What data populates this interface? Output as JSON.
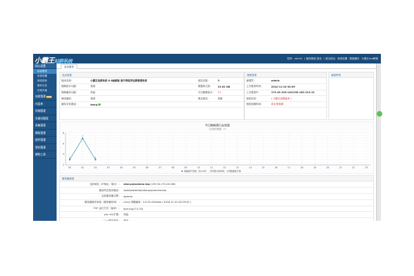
{
  "header": {
    "logo_main": "小霸王",
    "logo_sub": "站群系统",
    "links": [
      "您好：admin",
      "| 使用授权 退出",
      "| 前往前台",
      "系统设置",
      "更新缓存",
      "小霸王seo教程"
    ]
  },
  "sidebar": {
    "section": "核心设置",
    "sub_items": [
      "后台首页",
      "系统设置",
      "修改密码",
      "操作日志",
      "在线升级"
    ],
    "groups": [
      {
        "label": "站群管理",
        "badge": "NEW"
      },
      {
        "label": "内容库"
      },
      {
        "label": "伴随管理"
      },
      {
        "label": "关键词管理"
      },
      {
        "label": "采集管理"
      },
      {
        "label": "模板管理"
      },
      {
        "label": "插件管理"
      },
      {
        "label": "我的管理"
      },
      {
        "label": "辅助工具"
      }
    ]
  },
  "tab": "后台首页",
  "site_info": {
    "title": "站点信息",
    "rows": [
      [
        "程序名称：",
        "小霸王站群系统 6.8破解版 基于原程序站群管理系统",
        "域名总数：",
        "3"
      ],
      [
        "蜘蛛统计功能：",
        "关闭",
        "数据库占用：",
        "19.62 GB"
      ],
      [
        "蜘蛛缓存功能：",
        "开启",
        "今日蜘蛛统计：",
        "13"
      ],
      [
        "静态缓存：",
        "关闭",
        "是否调试：",
        "关闭"
      ],
      [
        "缓存文件路径：",
        "temp",
        "",
        ""
      ]
    ]
  },
  "auth_info": {
    "title": "授权信息",
    "rows": [
      [
        "管理员：",
        "admin"
      ],
      [
        "上次登录时间：",
        "2014-11-20 02:09"
      ],
      [
        "上次登录IP：",
        "172.49.109.149/100.162.213.12"
      ],
      [
        "授权状态：",
        "[ 小霸王站群版本 ]"
      ],
      [
        "授权到期时间：",
        "永久有效期"
      ]
    ]
  },
  "copyright": {
    "title": "版权所有"
  },
  "chart_data": {
    "type": "line",
    "title": "今日蜘蛛爬行走势图",
    "subtitle": "今日爬行数量：13",
    "categories": [
      "00",
      "01",
      "02",
      "03",
      "04",
      "05",
      "06",
      "07",
      "08",
      "09",
      "10",
      "11",
      "12",
      "13",
      "14",
      "15",
      "16",
      "17",
      "18",
      "19",
      "20",
      "21",
      "22",
      "23"
    ],
    "series": [
      {
        "name": "蜘蛛爬行次数（次/小时），访问量大的时候，小时数据会不准",
        "values": [
          3,
          7,
          3,
          null,
          null,
          null,
          null,
          null,
          null,
          null,
          null,
          null,
          null,
          null,
          null,
          null,
          null,
          null,
          null,
          null,
          null,
          null,
          null,
          null
        ],
        "color": "#4a9fb5"
      }
    ],
    "ylim": [
      2,
      8
    ],
    "yticks": [
      2,
      4,
      6,
      8
    ],
    "grid": true,
    "legend": "bottom"
  },
  "server": {
    "title": "服务器信息",
    "rows": [
      [
        "当前域名（IP地址：端口）：",
        "xbw.paysamma.top",
        "(155.94.175.241:80)"
      ],
      [
        "程序所在绝对路径：",
        "/www/wwwroot/xbw.paysamma.top",
        ""
      ],
      [
        "当前服务器引擎：",
        "Apache",
        ""
      ],
      [
        "服务器操作系统（服务器时间）：",
        "Linux 内核版本：2.6.32-042stab ( 2016-11-20 02:09:43 )",
        ""
      ],
      [
        "PHP 运行方式（版本）：",
        "fpm-fcgi(7.0.33)",
        ""
      ],
      [
        "php zlib扩展：",
        "开启",
        ""
      ],
      [
        "Curl模块调用：",
        "开启",
        ""
      ]
    ]
  }
}
